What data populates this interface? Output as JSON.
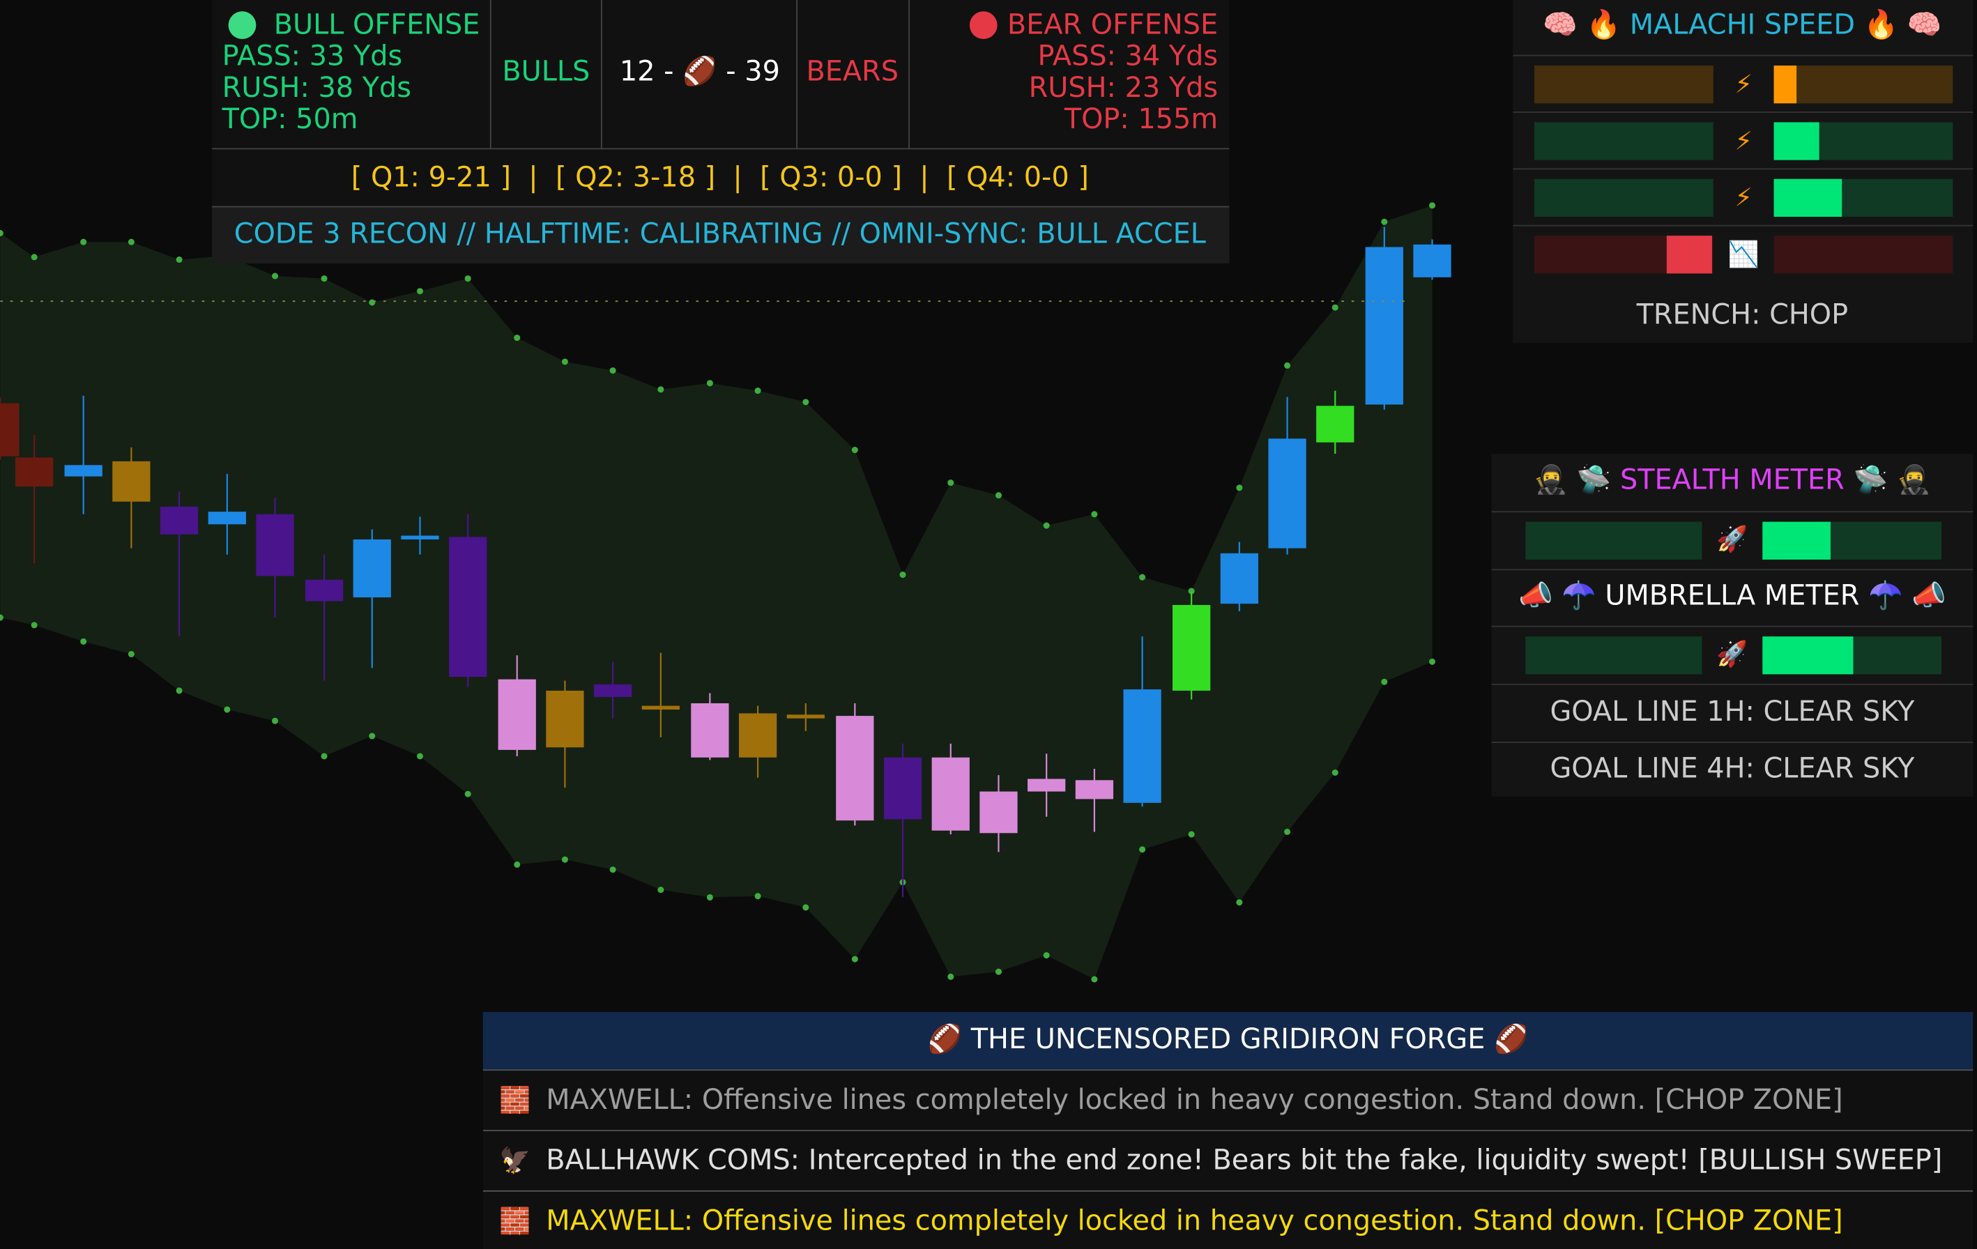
{
  "scoreboard": {
    "bull": {
      "title": "BULL OFFENSE",
      "pass": "PASS: 33 Yds",
      "rush": "RUSH: 38 Yds",
      "top": "TOP: 50m"
    },
    "bulls_label": "BULLS",
    "score": "12 - 🏈 - 39",
    "bears_label": "BEARS",
    "bear": {
      "title": "BEAR OFFENSE",
      "pass": "PASS: 34 Yds",
      "rush": "RUSH: 23 Yds",
      "top": "TOP: 155m"
    },
    "quarters": "[ Q1: 9-21 ]  |  [ Q2: 3-18 ]  |  [ Q3: 0-0 ]  |  [ Q4: 0-0 ]",
    "status": "CODE 3 RECON // HALFTIME: CALIBRATING // OMNI-SYNC: BULL ACCEL"
  },
  "malachi": {
    "title": "🧠 🔥 MALACHI SPEED 🔥 🧠",
    "icons": [
      "⚡",
      "⚡",
      "⚡",
      "📉"
    ],
    "trench": "TRENCH: CHOP"
  },
  "meters": {
    "stealth_title": "🥷 🛸 STEALTH METER 🛸 🥷",
    "stealth_icon": "🚀",
    "umbrella_title": "📣 ☂️ UMBRELLA METER ☂️ 📣",
    "umbrella_icon": "🚀",
    "goal_1h": "GOAL LINE 1H: CLEAR SKY",
    "goal_4h": "GOAL LINE 4H: CLEAR SKY"
  },
  "feed": {
    "title": "🏈 THE UNCENSORED GRIDIRON FORGE 🏈",
    "rows": [
      {
        "icon": "🧱",
        "text": "MAXWELL: Offensive lines completely locked in heavy congestion. Stand down. [CHOP ZONE]"
      },
      {
        "icon": "🦅",
        "text": "BALLHAWK COMS: Intercepted in the end zone! Bears bit the fake, liquidity swept! [BULLISH SWEEP]"
      },
      {
        "icon": "🧱",
        "text": "MAXWELL: Offensive lines completely locked in heavy congestion. Stand down. [CHOP ZONE]"
      }
    ]
  }
}
